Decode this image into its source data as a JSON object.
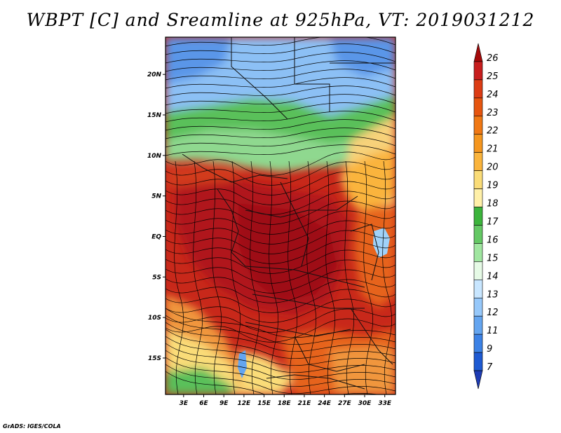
{
  "title": "WBPT [C] and Sreamline at 925hPa, VT: 2019031212",
  "credit": "GrADS: IGES/COLA",
  "map": {
    "variable": "Wet-bulb potential temperature",
    "units": "C",
    "level": "925hPa",
    "valid_time": "2019031212",
    "lat_ticks": [
      {
        "label": "20N",
        "lat": 20
      },
      {
        "label": "15N",
        "lat": 15
      },
      {
        "label": "10N",
        "lat": 10
      },
      {
        "label": "5N",
        "lat": 5
      },
      {
        "label": "EQ",
        "lat": 0
      },
      {
        "label": "5S",
        "lat": -5
      },
      {
        "label": "10S",
        "lat": -10
      },
      {
        "label": "15S",
        "lat": -15
      }
    ],
    "lon_ticks": [
      {
        "label": "3E",
        "lon": 3
      },
      {
        "label": "6E",
        "lon": 6
      },
      {
        "label": "9E",
        "lon": 9
      },
      {
        "label": "12E",
        "lon": 12
      },
      {
        "label": "15E",
        "lon": 15
      },
      {
        "label": "18E",
        "lon": 18
      },
      {
        "label": "21E",
        "lon": 21
      },
      {
        "label": "24E",
        "lon": 24
      },
      {
        "label": "27E",
        "lon": 27
      },
      {
        "label": "30E",
        "lon": 30
      },
      {
        "label": "33E",
        "lon": 33
      }
    ],
    "extent": {
      "lon_min": 0.3,
      "lon_max": 34.6,
      "lat_min": -19.5,
      "lat_max": 24.6
    }
  },
  "colorbar": {
    "labels": [
      "26",
      "25",
      "24",
      "23",
      "22",
      "21",
      "20",
      "19",
      "18",
      "17",
      "16",
      "15",
      "14",
      "13",
      "12",
      "11",
      "9",
      "7"
    ],
    "colors": [
      "#a50a0a",
      "#c81e1e",
      "#dc3c14",
      "#e6550f",
      "#f07814",
      "#f5961e",
      "#fab43c",
      "#fadc78",
      "#fff0a8",
      "#3cb43c",
      "#64c864",
      "#a0e6a0",
      "#e6fae6",
      "#c8e6ff",
      "#96c8fa",
      "#64a5f0",
      "#3c82e6",
      "#1e5ad2",
      "#1e3cb4"
    ]
  }
}
